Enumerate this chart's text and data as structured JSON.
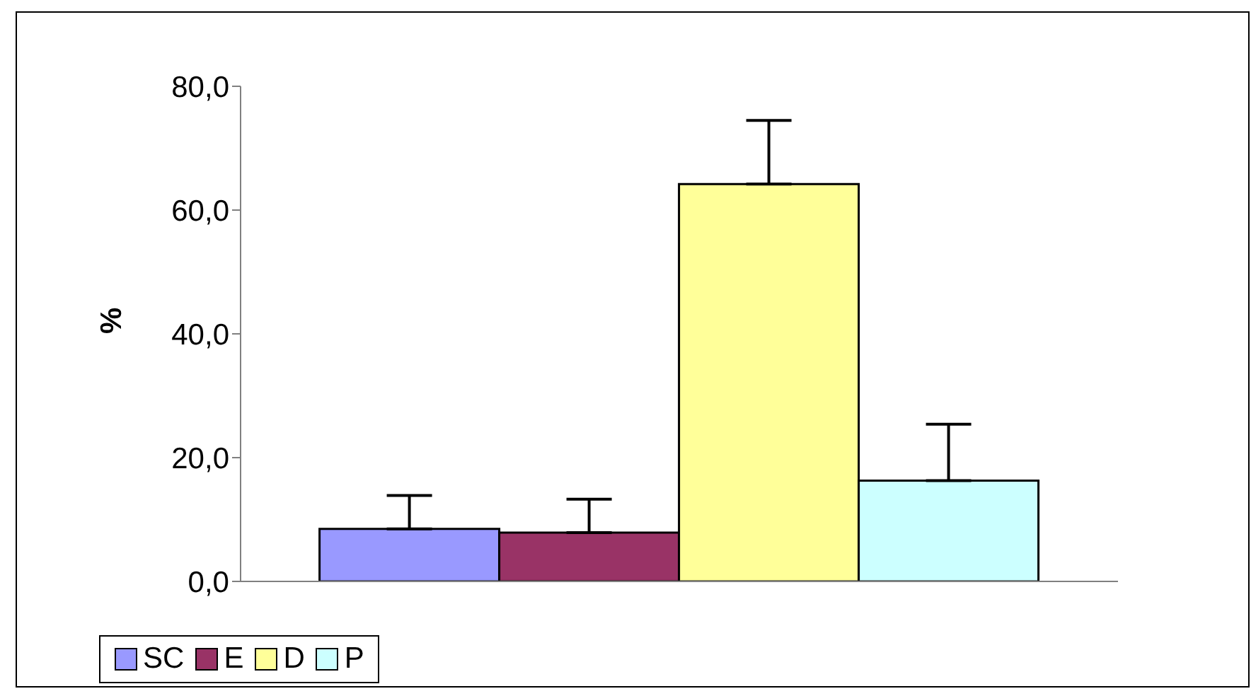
{
  "chart_data": {
    "type": "bar",
    "ylabel": "%",
    "categories": [
      null
    ],
    "series": [
      {
        "name": "SC",
        "color": "#9999ff",
        "values": [
          8.5
        ],
        "errors": [
          [
            8.5,
            13.9
          ]
        ]
      },
      {
        "name": "E",
        "color": "#993366",
        "values": [
          7.9
        ],
        "errors": [
          [
            7.9,
            13.3
          ]
        ]
      },
      {
        "name": "D",
        "color": "#ffff99",
        "values": [
          64.2
        ],
        "errors": [
          [
            64.2,
            74.5
          ]
        ]
      },
      {
        "name": "P",
        "color": "#ccffff",
        "values": [
          16.3
        ],
        "errors": [
          [
            16.3,
            25.4
          ]
        ]
      }
    ],
    "ylim": [
      0,
      80
    ],
    "yticks": [
      {
        "value": 0,
        "label": "0,0"
      },
      {
        "value": 20,
        "label": "20,0"
      },
      {
        "value": 40,
        "label": "40,0"
      },
      {
        "value": 60,
        "label": "60,0"
      },
      {
        "value": 80,
        "label": "80,0"
      }
    ],
    "grid": false,
    "legend": "bottom"
  }
}
